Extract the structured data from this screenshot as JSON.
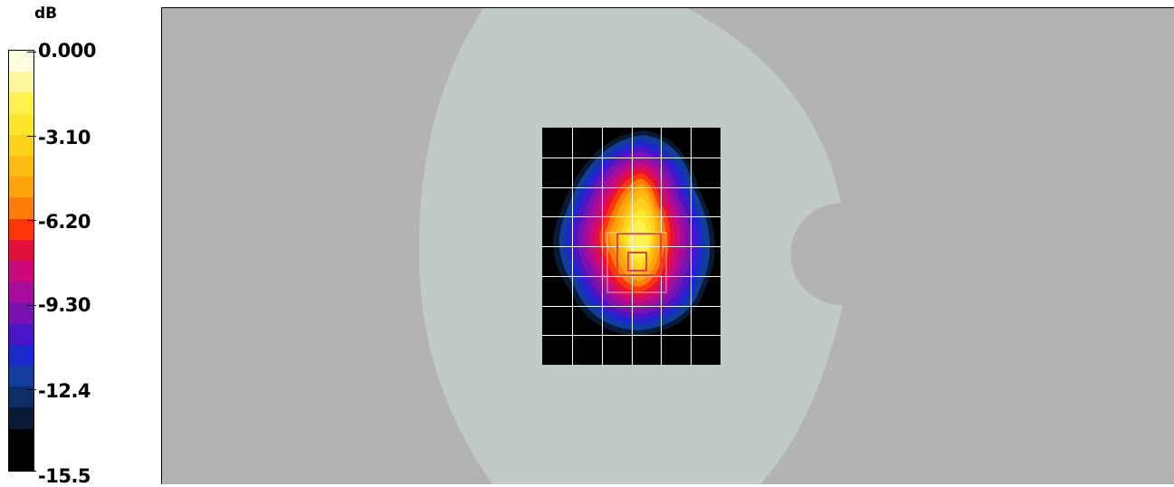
{
  "legend": {
    "unit": "dB",
    "ticks": [
      "0.000",
      "-3.10",
      "-6.20",
      "-9.30",
      "-12.4",
      "-15.5"
    ],
    "colors": [
      "#fffde0",
      "#fff79a",
      "#fff24c",
      "#ffe52b",
      "#ffd21e",
      "#ffbb13",
      "#ffa30c",
      "#ff7c07",
      "#ff3608",
      "#e3103c",
      "#c90a78",
      "#a50c9c",
      "#7812b0",
      "#4a15c7",
      "#1a28cc",
      "#113d9c",
      "#0e2d66",
      "#0a1a33",
      "#000000",
      "#000000"
    ]
  },
  "plot": {
    "background_color": "#b3b3b3",
    "phantom_color": "#c1cac9",
    "scan_area_color": "#000000",
    "grid_color": "#ffffff",
    "cube_outline_color": "#e34040",
    "grid_columns": 6,
    "grid_rows": 8
  }
}
